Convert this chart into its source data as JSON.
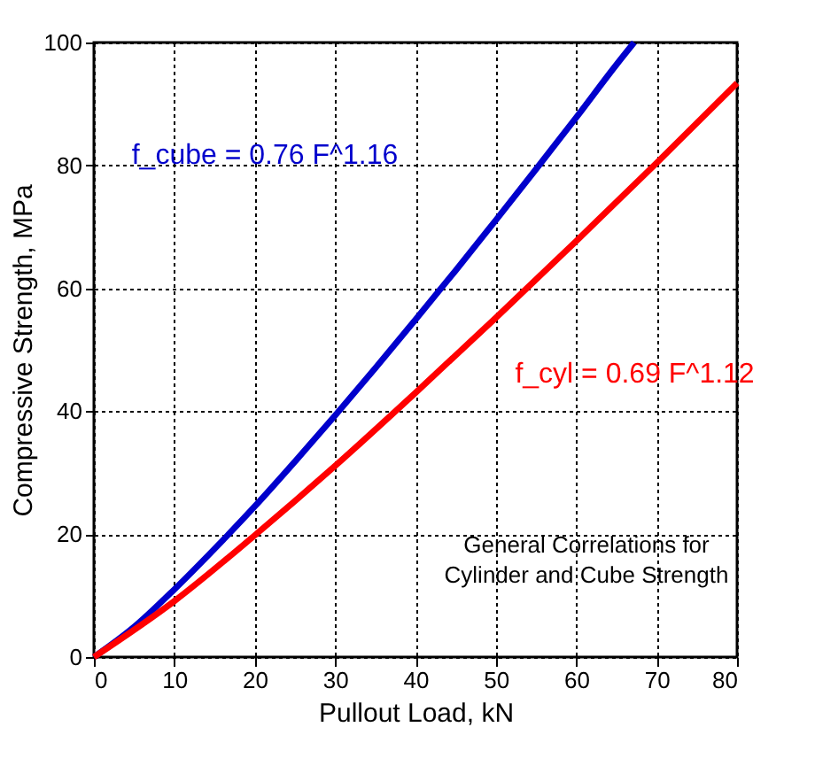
{
  "chart_data": {
    "type": "line",
    "xlabel": "Pullout Load, kN",
    "ylabel": "Compressive Strength, MPa",
    "series": [
      {
        "name": "f_cube = 0.76 F^1.16",
        "color": "#0000cc",
        "x": [
          0,
          5,
          10,
          15,
          20,
          25,
          30,
          35,
          40,
          45,
          50,
          55,
          60,
          65,
          67.2
        ],
        "values": [
          0,
          4.9,
          11.0,
          17.6,
          24.5,
          31.8,
          39.3,
          47.0,
          54.9,
          62.9,
          71.1,
          79.4,
          87.8,
          96.4,
          100
        ]
      },
      {
        "name": "f_cyl = 0.69 F^1.12",
        "color": "#ff0000",
        "x": [
          0,
          10,
          20,
          30,
          40,
          50,
          60,
          70,
          80
        ],
        "values": [
          0,
          9.1,
          19.8,
          31.1,
          43.0,
          55.2,
          67.7,
          80.4,
          93.4
        ]
      }
    ],
    "annotations": [
      "General Correlations for\nCylinder and Cube Strength"
    ],
    "xlim": [
      0,
      80
    ],
    "xticks": [
      0,
      10,
      20,
      30,
      40,
      50,
      60,
      70,
      80
    ],
    "ylim": [
      0,
      100
    ],
    "yticks": [
      0,
      20,
      40,
      60,
      80,
      100
    ],
    "grid": true,
    "line_style": "solid",
    "marker": "none"
  }
}
